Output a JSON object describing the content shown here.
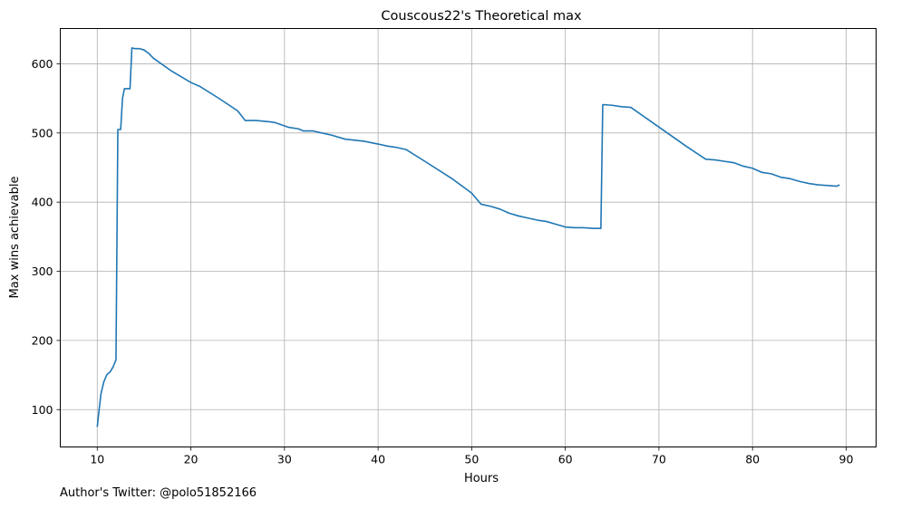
{
  "footer": {
    "text": "Author's Twitter: @polo51852166"
  },
  "chart_data": {
    "type": "line",
    "title": "Couscous22's Theoretical max",
    "xlabel": "Hours",
    "ylabel": "Max wins achievable",
    "xlim": [
      6.05,
      93.2
    ],
    "ylim": [
      46,
      651
    ],
    "xticks": [
      10,
      20,
      30,
      40,
      50,
      60,
      70,
      80,
      90
    ],
    "yticks": [
      100,
      200,
      300,
      400,
      500,
      600
    ],
    "grid": true,
    "line_color": "#1f77b4",
    "series": [
      {
        "x": [
          10.0,
          10.2,
          10.4,
          10.7,
          11.0,
          11.4,
          11.7,
          12.0,
          12.2,
          12.3,
          12.5,
          12.7,
          12.9,
          13.2,
          13.5,
          13.7,
          14.0,
          14.5,
          15.0,
          15.5,
          16.0,
          18.0,
          20.0,
          21.0,
          23.0,
          25.0,
          25.8,
          27.0,
          28.5,
          29.0,
          30.5,
          31.5,
          32.0,
          33.0,
          34.0,
          35.0,
          36.5,
          38.5,
          40.0,
          41.0,
          42.0,
          43.0,
          45.0,
          48.0,
          50.0,
          51.0,
          52.0,
          53.0,
          54.0,
          55.0,
          56.0,
          57.0,
          58.0,
          59.0,
          60.0,
          61.0,
          62.0,
          63.0,
          63.5,
          63.8,
          64.0,
          65.0,
          66.0,
          67.0,
          69.0,
          71.0,
          73.0,
          75.0,
          76.0,
          77.0,
          78.0,
          79.0,
          80.0,
          81.0,
          82.0,
          83.0,
          84.0,
          85.0,
          86.0,
          87.0,
          88.0,
          89.0,
          89.3
        ],
        "y": [
          75,
          100,
          123,
          140,
          150,
          155,
          162,
          172,
          505,
          505,
          505,
          550,
          564,
          564,
          564,
          623,
          622,
          622,
          620,
          615,
          608,
          589,
          573,
          567,
          550,
          532,
          518,
          518,
          516,
          515,
          508,
          506,
          503,
          503,
          500,
          497,
          491,
          488,
          484,
          481,
          479,
          476,
          459,
          433,
          413,
          397,
          394,
          390,
          384,
          380,
          377,
          374,
          372,
          368,
          364,
          363,
          363,
          362,
          362,
          362,
          541,
          540,
          538,
          537,
          518,
          499,
          480,
          462,
          461,
          459,
          457,
          452,
          449,
          443,
          441,
          436,
          434,
          430,
          427,
          425,
          424,
          423,
          425
        ]
      }
    ]
  }
}
